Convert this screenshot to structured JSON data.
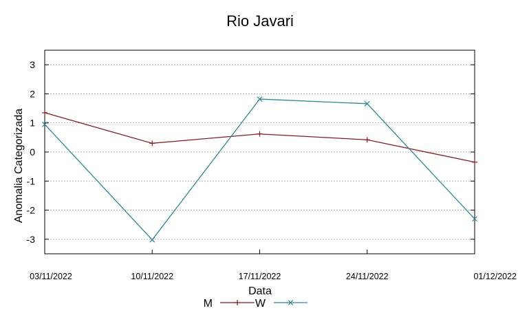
{
  "chart_data": {
    "type": "line",
    "title": "Rio Javari",
    "xlabel": "Data",
    "ylabel": "Anomalia Categorizada",
    "categories": [
      "03/11/2022",
      "10/11/2022",
      "17/11/2022",
      "24/11/2022",
      "01/12/2022"
    ],
    "ylim": [
      -3.5,
      3.5
    ],
    "yticks": [
      3,
      2,
      1,
      0,
      -1,
      -2,
      -3
    ],
    "ytick_labels": [
      "3",
      "2",
      "1",
      "0",
      "-1",
      "-2",
      "-3"
    ],
    "grid": true,
    "legend_position": "bottom-center",
    "series": [
      {
        "name": "M",
        "color": "#8b1a1a",
        "marker": "plus",
        "values": [
          1.35,
          0.3,
          0.62,
          0.42,
          -0.35
        ]
      },
      {
        "name": "W",
        "color": "#2a8a94",
        "marker": "cross",
        "values": [
          0.95,
          -3.02,
          1.82,
          1.66,
          -2.3
        ]
      }
    ]
  }
}
